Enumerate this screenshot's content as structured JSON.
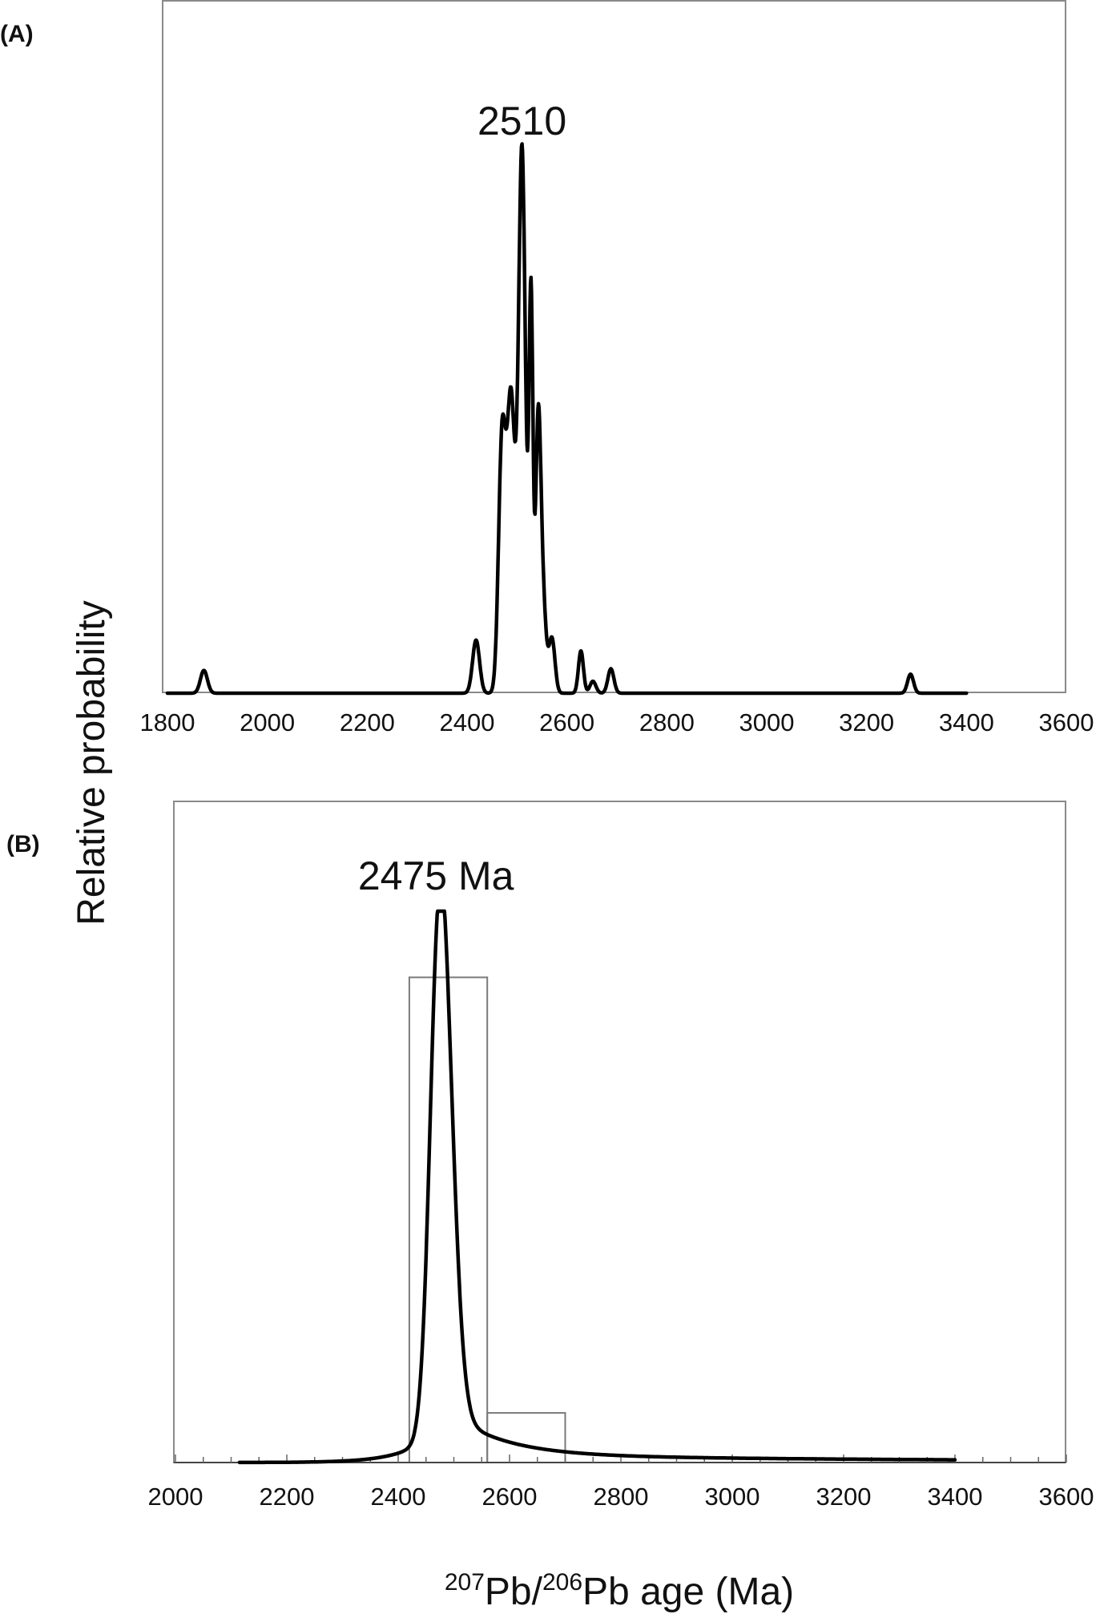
{
  "chart_data": [
    {
      "panel_label": "(A)",
      "type": "line",
      "xlim": [
        1800,
        3600
      ],
      "x_ticks": [
        "1800",
        "2000",
        "2200",
        "2400",
        "2600",
        "2800",
        "3000",
        "3200",
        "3400",
        "3600"
      ],
      "peak_label": "2510",
      "peak_label_x": 2510,
      "curve_range": [
        1800,
        3400
      ],
      "components": [
        {
          "x": 1873,
          "height": 0.042,
          "sigma": 7
        },
        {
          "x": 2418,
          "height": 0.098,
          "sigma": 7
        },
        {
          "x": 2470,
          "height": 0.46,
          "sigma": 7
        },
        {
          "x": 2488,
          "height": 0.54,
          "sigma": 8
        },
        {
          "x": 2510,
          "height": 1.0,
          "sigma": 7
        },
        {
          "x": 2528,
          "height": 0.72,
          "sigma": 4
        },
        {
          "x": 2542,
          "height": 0.42,
          "sigma": 5
        },
        {
          "x": 2550,
          "height": 0.2,
          "sigma": 7
        },
        {
          "x": 2570,
          "height": 0.1,
          "sigma": 6
        },
        {
          "x": 2628,
          "height": 0.078,
          "sigma": 5
        },
        {
          "x": 2652,
          "height": 0.022,
          "sigma": 6
        },
        {
          "x": 2688,
          "height": 0.045,
          "sigma": 6
        },
        {
          "x": 3288,
          "height": 0.035,
          "sigma": 6
        }
      ]
    },
    {
      "panel_label": "(B)",
      "type": "line",
      "xlim": [
        2000,
        3600
      ],
      "x_ticks": [
        "2000",
        "2200",
        "2400",
        "2600",
        "2800",
        "3000",
        "3200",
        "3400",
        "3600"
      ],
      "peak_label": "2475 Ma",
      "peak_label_x": 2475,
      "curve_range": [
        2115,
        3400
      ],
      "peak_x": 2475,
      "peak_height": 1.0,
      "histogram": [
        {
          "from": 2420,
          "to": 2560,
          "height": 0.88
        },
        {
          "from": 2560,
          "to": 2700,
          "height": 0.09
        }
      ]
    }
  ],
  "ylabel": "Relative probability",
  "xlabel": {
    "sup1": "207",
    "base1": "Pb/",
    "sup2": "206",
    "base2": "Pb age (Ma)"
  }
}
